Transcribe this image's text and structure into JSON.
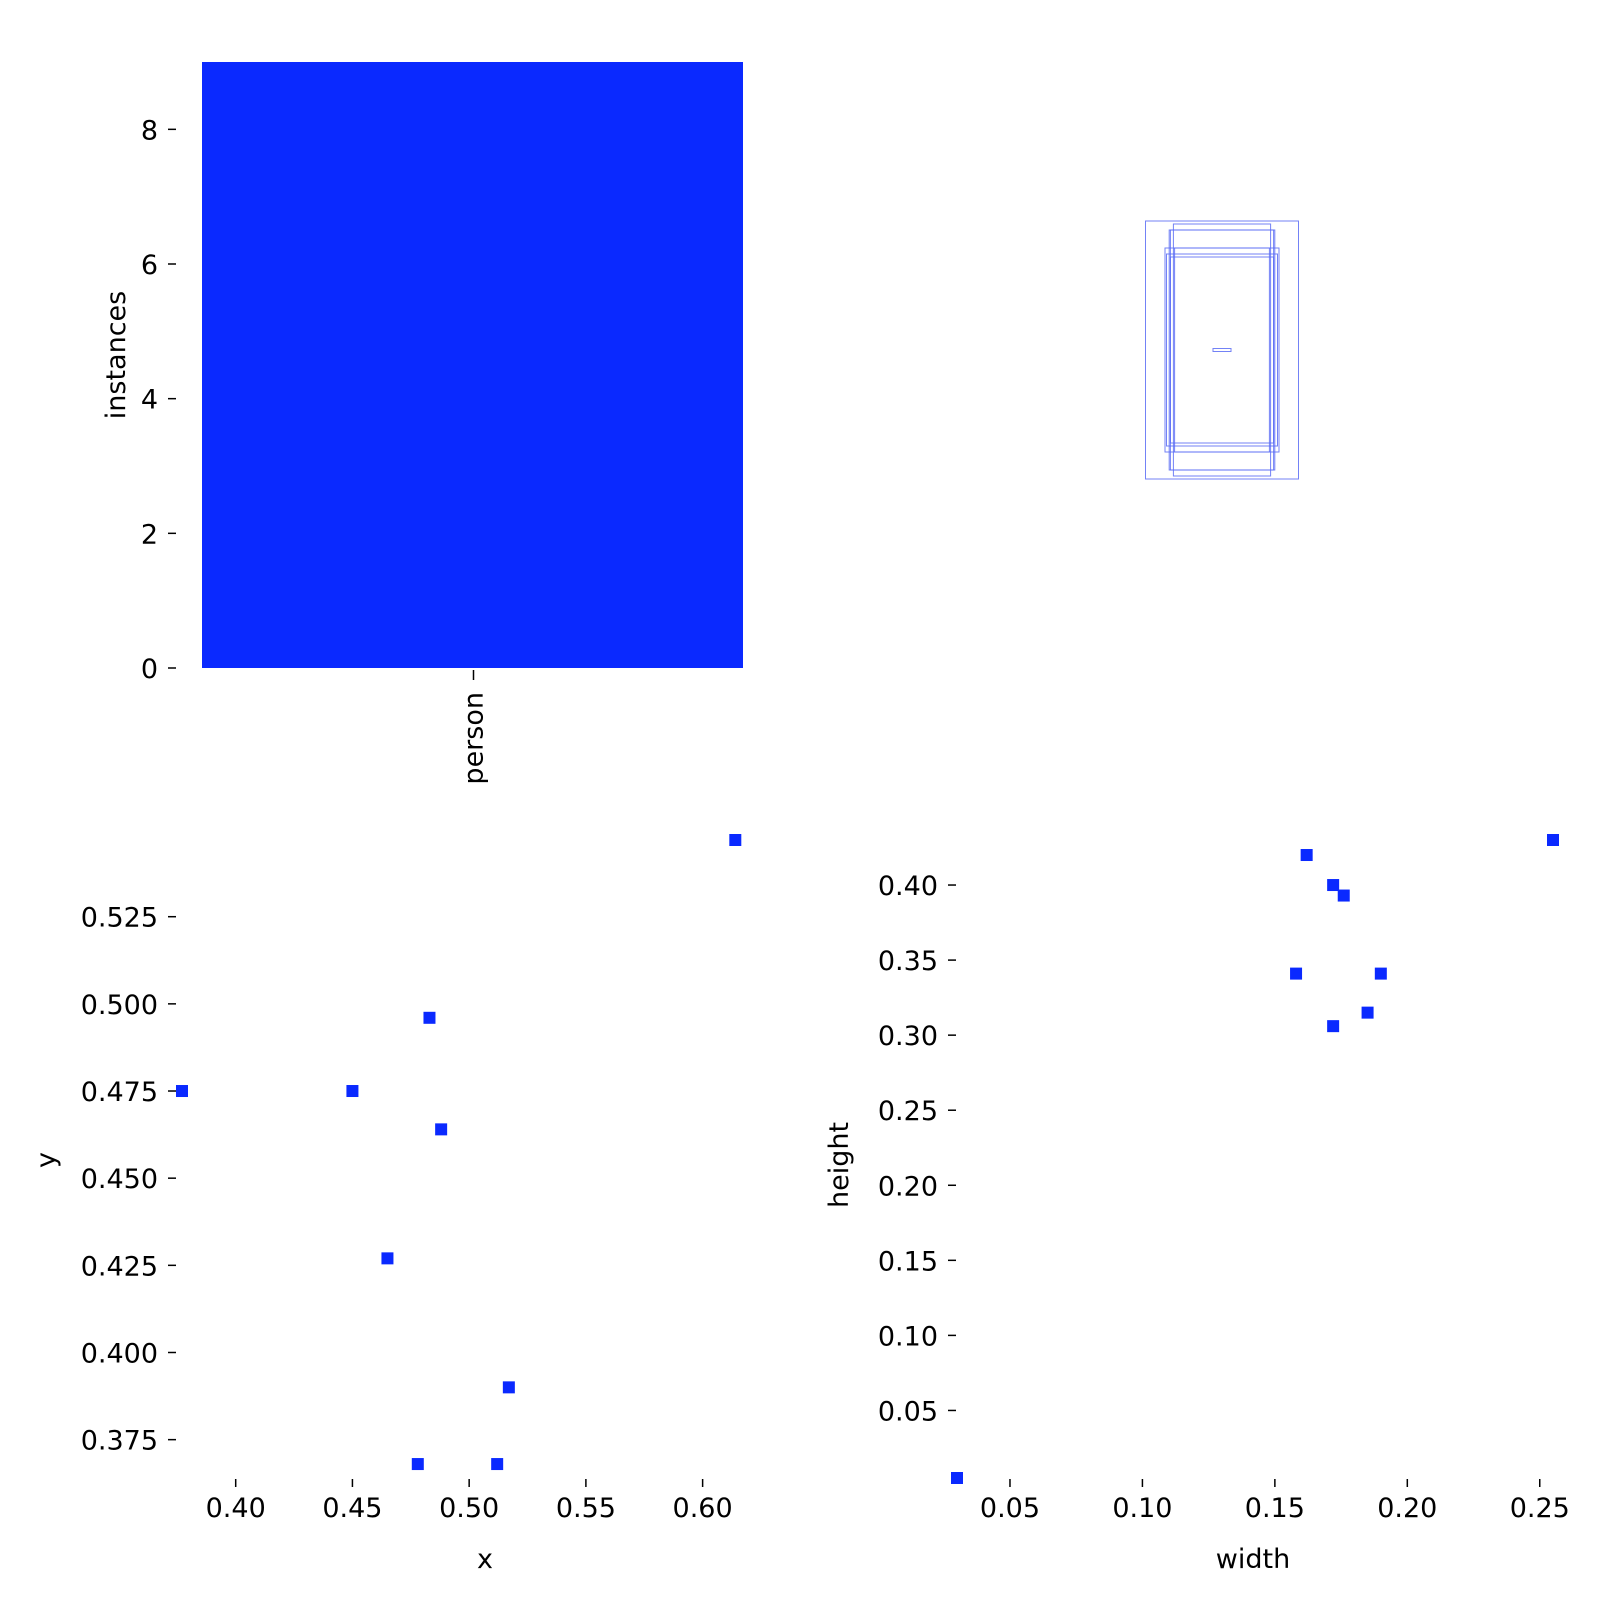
{
  "colors": {
    "primary": "#0a29ff",
    "box": "#5a6cf5"
  },
  "chart_data": [
    {
      "type": "bar",
      "categories": [
        "person"
      ],
      "values": [
        9
      ],
      "xlabel": "",
      "ylabel": "instances",
      "ylim": [
        0,
        9
      ],
      "yticks": [
        "0",
        "2",
        "4",
        "6",
        "8"
      ],
      "grid": false
    },
    {
      "type": "boxes",
      "note_free": true,
      "boxes": [
        {
          "w": 0.255,
          "h": 0.43
        },
        {
          "w": 0.162,
          "h": 0.42
        },
        {
          "w": 0.172,
          "h": 0.4
        },
        {
          "w": 0.176,
          "h": 0.4
        },
        {
          "w": 0.158,
          "h": 0.34
        },
        {
          "w": 0.19,
          "h": 0.34
        },
        {
          "w": 0.185,
          "h": 0.32
        },
        {
          "w": 0.172,
          "h": 0.31
        },
        {
          "w": 0.03,
          "h": 0.005
        }
      ]
    },
    {
      "type": "scatter",
      "xlabel": "x",
      "ylabel": "y",
      "xticks": [
        "0.40",
        "0.45",
        "0.50",
        "0.55",
        "0.60"
      ],
      "yticks": [
        "0.375",
        "0.400",
        "0.425",
        "0.450",
        "0.475",
        "0.500",
        "0.525"
      ],
      "xlim": [
        0.377,
        0.634
      ],
      "ylim": [
        0.364,
        0.547
      ],
      "points": [
        {
          "x": 0.614,
          "y": 0.547
        },
        {
          "x": 0.483,
          "y": 0.496
        },
        {
          "x": 0.377,
          "y": 0.475
        },
        {
          "x": 0.45,
          "y": 0.475
        },
        {
          "x": 0.488,
          "y": 0.464
        },
        {
          "x": 0.465,
          "y": 0.427
        },
        {
          "x": 0.517,
          "y": 0.39
        },
        {
          "x": 0.478,
          "y": 0.368
        },
        {
          "x": 0.512,
          "y": 0.368
        }
      ]
    },
    {
      "type": "scatter",
      "xlabel": "width",
      "ylabel": "height",
      "xticks": [
        "0.05",
        "0.10",
        "0.15",
        "0.20",
        "0.25"
      ],
      "yticks": [
        "0.05",
        "0.10",
        "0.15",
        "0.20",
        "0.25",
        "0.30",
        "0.35",
        "0.40"
      ],
      "xlim": [
        0.03,
        0.255
      ],
      "ylim": [
        0.005,
        0.43
      ],
      "points": [
        {
          "x": 0.255,
          "y": 0.43
        },
        {
          "x": 0.162,
          "y": 0.42
        },
        {
          "x": 0.172,
          "y": 0.4
        },
        {
          "x": 0.176,
          "y": 0.393
        },
        {
          "x": 0.158,
          "y": 0.341
        },
        {
          "x": 0.19,
          "y": 0.341
        },
        {
          "x": 0.185,
          "y": 0.315
        },
        {
          "x": 0.172,
          "y": 0.306
        },
        {
          "x": 0.03,
          "y": 0.005
        }
      ]
    }
  ]
}
